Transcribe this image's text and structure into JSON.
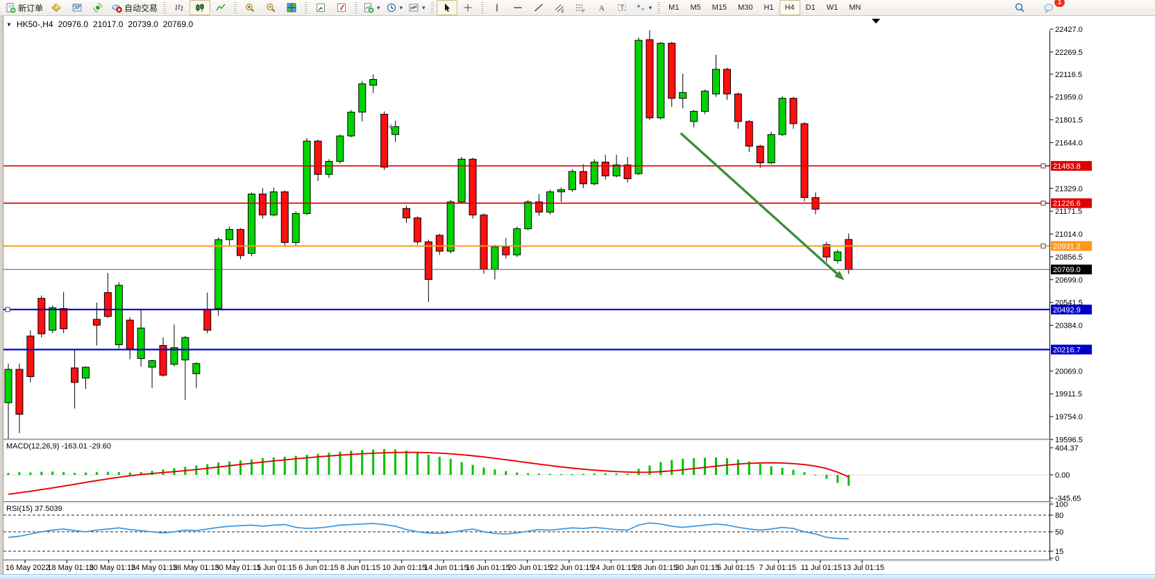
{
  "toolbar": {
    "new_order_label": "新订单",
    "autotrade_label": "自动交易",
    "groups": [
      {
        "items": [
          {
            "name": "new-order-button",
            "icon": "new-order-icon",
            "label": "新订单"
          },
          {
            "name": "market-watch-button",
            "icon": "market-watch-icon"
          },
          {
            "name": "data-window-button",
            "icon": "data-window-icon"
          },
          {
            "name": "navigator-button",
            "icon": "navigator-icon"
          },
          {
            "name": "autotrade-button",
            "icon": "autotrade-icon",
            "label": "自动交易"
          }
        ]
      },
      {
        "items": [
          {
            "name": "bar-chart-button",
            "icon": "bar-chart-icon"
          },
          {
            "name": "candle-chart-button",
            "icon": "candle-chart-icon",
            "active": true
          },
          {
            "name": "line-chart-button",
            "icon": "line-chart-icon"
          }
        ]
      },
      {
        "items": [
          {
            "name": "zoom-in-button",
            "icon": "zoom-in-icon"
          },
          {
            "name": "zoom-out-button",
            "icon": "zoom-out-icon"
          },
          {
            "name": "tile-windows-button",
            "icon": "tile-windows-icon"
          }
        ]
      },
      {
        "items": [
          {
            "name": "auto-arrange-button",
            "icon": "arrange-icon"
          },
          {
            "name": "chart-shift-button",
            "icon": "track-icon"
          }
        ]
      },
      {
        "items": [
          {
            "name": "indicators-button",
            "icon": "indicators-icon",
            "caret": true
          },
          {
            "name": "periods-button",
            "icon": "clock-icon",
            "caret": true
          },
          {
            "name": "templates-button",
            "icon": "template-icon",
            "caret": true
          }
        ]
      },
      {
        "items": [
          {
            "name": "cursor-button",
            "icon": "cursor-icon",
            "active": true
          },
          {
            "name": "crosshair-button",
            "icon": "crosshair-icon"
          }
        ]
      },
      {
        "items": [
          {
            "name": "vline-button",
            "icon": "vline-icon"
          },
          {
            "name": "hline-button",
            "icon": "hline-icon"
          },
          {
            "name": "trendline-button",
            "icon": "trendline-icon"
          },
          {
            "name": "channel-button",
            "icon": "channel-icon"
          },
          {
            "name": "fibonacci-button",
            "icon": "fibo-icon"
          },
          {
            "name": "text-button",
            "icon": "text-icon"
          },
          {
            "name": "label-button",
            "icon": "label-icon"
          },
          {
            "name": "shapes-button",
            "icon": "shapes-icon",
            "caret": true
          }
        ]
      }
    ],
    "timeframes": [
      "M1",
      "M5",
      "M15",
      "M30",
      "H1",
      "H4",
      "D1",
      "W1",
      "MN"
    ],
    "active_timeframe": "H4",
    "chat_badge": "1"
  },
  "chart": {
    "symbol_period": "HK50-,H4",
    "open": "20976.0",
    "high": "21017.0",
    "low": "20739.0",
    "close": "20769.0"
  },
  "indicators": {
    "macd_label": "MACD(12,26,9) -163.01 -29.60",
    "rsi_label": "RSI(15) 37.5039"
  },
  "chart_data": {
    "type": "candlestick",
    "symbol": "HK50-",
    "period": "H4",
    "ylim": [
      19596.5,
      22427.0
    ],
    "grid": false,
    "colors": {
      "up": "#00d300",
      "down": "#ff0f0f",
      "wick": "#000000",
      "macd_hist": "#00c000",
      "macd_signal": "#e80000",
      "rsi_line": "#3a96dd",
      "level_red": "#e00000",
      "level_orange": "#ff9815",
      "level_blue": "#0000cc",
      "current_badge": "#000000",
      "arrow_green": "#3d8c3d"
    },
    "price_ticks": [
      "22427.0",
      "22269.5",
      "22116.5",
      "21959.0",
      "21801.5",
      "21644.0",
      "21329.0",
      "21171.5",
      "21014.0",
      "20856.5",
      "20699.0",
      "20541.5",
      "20384.0",
      "20069.0",
      "19911.5",
      "19754.0",
      "19596.5"
    ],
    "levels": [
      {
        "price": "21483.8",
        "color": "#e00000",
        "width": 1.7,
        "handle": "right"
      },
      {
        "price": "21226.6",
        "color": "#e00000",
        "width": 1.7,
        "handle": "right"
      },
      {
        "price": "20931.2",
        "color": "#ff9815",
        "width": 2,
        "handle": "right"
      },
      {
        "price": "20769.0",
        "color": "#000000",
        "line": "#555555",
        "width": 1,
        "type": "current-price"
      },
      {
        "price": "20492.9",
        "color": "#0000cc",
        "width": 2.2,
        "handle": "left"
      },
      {
        "price": "20216.7",
        "color": "#0000cc",
        "width": 2.2
      }
    ],
    "time_labels": [
      "16 May 2022",
      "18 May 01:15",
      "20 May 01:15",
      "24 May 01:15",
      "26 May 01:15",
      "30 May 01:15",
      "1 Jun 01:15",
      "6 Jun 01:15",
      "8 Jun 01:15",
      "10 Jun 01:15",
      "14 Jun 01:15",
      "16 Jun 01:15",
      "20 Jun 01:15",
      "22 Jun 01:15",
      "24 Jun 01:15",
      "28 Jun 01:15",
      "30 Jun 01:15",
      "5 Jul 01:15",
      "7 Jul 01:15",
      "11 Jul 01:15",
      "13 Jul 01:15"
    ],
    "candles": [
      [
        19850,
        20120,
        19600,
        20080
      ],
      [
        20080,
        20120,
        19640,
        19770
      ],
      [
        20310,
        20350,
        19990,
        20030
      ],
      [
        20570,
        20590,
        20300,
        20325
      ],
      [
        20350,
        20520,
        20330,
        20505
      ],
      [
        20500,
        20615,
        20330,
        20360
      ],
      [
        20090,
        20220,
        19810,
        19990
      ],
      [
        20020,
        20100,
        19945,
        20095
      ],
      [
        20425,
        20540,
        20245,
        20385
      ],
      [
        20610,
        20745,
        20435,
        20445
      ],
      [
        20250,
        20680,
        20225,
        20660
      ],
      [
        20420,
        20440,
        20150,
        20220
      ],
      [
        20155,
        20490,
        20100,
        20365
      ],
      [
        20095,
        20145,
        19950,
        20140
      ],
      [
        20245,
        20300,
        20030,
        20040
      ],
      [
        20115,
        20390,
        20100,
        20230
      ],
      [
        20145,
        20310,
        19870,
        20300
      ],
      [
        20050,
        20130,
        19950,
        20120
      ],
      [
        20495,
        20610,
        20330,
        20350
      ],
      [
        20500,
        20990,
        20450,
        20975
      ],
      [
        20975,
        21065,
        20930,
        21045
      ],
      [
        21045,
        21055,
        20840,
        20865
      ],
      [
        20880,
        21300,
        20860,
        21290
      ],
      [
        21290,
        21330,
        21120,
        21145
      ],
      [
        21145,
        21335,
        21135,
        21305
      ],
      [
        21305,
        21315,
        20930,
        20955
      ],
      [
        20955,
        21170,
        20930,
        21155
      ],
      [
        21155,
        21675,
        21145,
        21655
      ],
      [
        21655,
        21665,
        21380,
        21425
      ],
      [
        21425,
        21530,
        21400,
        21515
      ],
      [
        21515,
        21700,
        21500,
        21690
      ],
      [
        21690,
        21870,
        21680,
        21855
      ],
      [
        21855,
        22070,
        21790,
        22050
      ],
      [
        22040,
        22115,
        21985,
        22080
      ],
      [
        21840,
        21860,
        21455,
        21475
      ],
      [
        21700,
        21795,
        21650,
        21755
      ],
      [
        21190,
        21210,
        21090,
        21125
      ],
      [
        21125,
        21135,
        20940,
        20960
      ],
      [
        20960,
        20975,
        20545,
        20700
      ],
      [
        21005,
        21015,
        20870,
        20895
      ],
      [
        20895,
        21250,
        20880,
        21235
      ],
      [
        21235,
        21545,
        21225,
        21530
      ],
      [
        21530,
        21540,
        21120,
        21145
      ],
      [
        21145,
        21155,
        20740,
        20770
      ],
      [
        20770,
        20940,
        20700,
        20925
      ],
      [
        20925,
        20985,
        20845,
        20870
      ],
      [
        20870,
        21065,
        20855,
        21050
      ],
      [
        21050,
        21250,
        21040,
        21235
      ],
      [
        21235,
        21290,
        21140,
        21165
      ],
      [
        21165,
        21320,
        21150,
        21305
      ],
      [
        21305,
        21335,
        21235,
        21320
      ],
      [
        21320,
        21460,
        21305,
        21445
      ],
      [
        21445,
        21495,
        21330,
        21360
      ],
      [
        21360,
        21530,
        21350,
        21510
      ],
      [
        21510,
        21560,
        21390,
        21415
      ],
      [
        21415,
        21560,
        21405,
        21490
      ],
      [
        21490,
        21545,
        21370,
        21395
      ],
      [
        21430,
        22370,
        21420,
        22350
      ],
      [
        22355,
        22420,
        21800,
        21815
      ],
      [
        21815,
        22340,
        21805,
        22330
      ],
      [
        22330,
        22340,
        21890,
        21950
      ],
      [
        21950,
        22120,
        21880,
        21990
      ],
      [
        21790,
        21870,
        21750,
        21860
      ],
      [
        21860,
        22010,
        21840,
        22000
      ],
      [
        21980,
        22250,
        21960,
        22150
      ],
      [
        22150,
        22160,
        21940,
        21980
      ],
      [
        21980,
        21990,
        21740,
        21790
      ],
      [
        21790,
        21800,
        21580,
        21620
      ],
      [
        21620,
        21630,
        21470,
        21505
      ],
      [
        21505,
        21720,
        21495,
        21700
      ],
      [
        21700,
        21965,
        21690,
        21950
      ],
      [
        21950,
        21960,
        21740,
        21775
      ],
      [
        21775,
        21785,
        21240,
        21265
      ],
      [
        21265,
        21300,
        21150,
        21185
      ],
      [
        20940,
        20960,
        20820,
        20855
      ],
      [
        20830,
        20905,
        20810,
        20890
      ],
      [
        20976,
        21017,
        20739,
        20769
      ]
    ],
    "macd": {
      "label": "MACD(12,26,9) -163.01 -29.60",
      "axis": [
        "404.37",
        "0.00",
        "-345.65"
      ],
      "histogram": [
        30,
        40,
        35,
        45,
        50,
        40,
        30,
        35,
        40,
        45,
        40,
        35,
        40,
        60,
        80,
        100,
        120,
        140,
        160,
        185,
        200,
        215,
        230,
        250,
        260,
        270,
        285,
        300,
        315,
        330,
        345,
        360,
        370,
        380,
        385,
        380,
        360,
        330,
        300,
        270,
        240,
        190,
        150,
        110,
        80,
        55,
        35,
        25,
        20,
        15,
        12,
        12,
        15,
        20,
        22,
        20,
        16,
        90,
        140,
        190,
        220,
        240,
        250,
        255,
        260,
        250,
        230,
        200,
        165,
        130,
        105,
        75,
        40,
        0,
        -60,
        -120,
        -163
      ],
      "signal": [
        -290,
        -268,
        -245,
        -220,
        -195,
        -168,
        -140,
        -112,
        -85,
        -60,
        -36,
        -14,
        5,
        20,
        34,
        48,
        63,
        80,
        98,
        117,
        136,
        155,
        173,
        191,
        208,
        224,
        240,
        255,
        269,
        282,
        294,
        305,
        315,
        323,
        330,
        334,
        336,
        335,
        331,
        324,
        314,
        301,
        285,
        267,
        247,
        226,
        204,
        182,
        160,
        139,
        119,
        101,
        85,
        71,
        59,
        49,
        42,
        38,
        40,
        48,
        60,
        76,
        94,
        112,
        130,
        147,
        161,
        172,
        178,
        180,
        177,
        168,
        153,
        130,
        95,
        40,
        -29.6
      ]
    },
    "rsi": {
      "label": "RSI(15) 37.5039",
      "axis": [
        "100",
        "80",
        "50",
        "15",
        "0"
      ],
      "dashed_levels": [
        80,
        50,
        15
      ],
      "values": [
        40,
        42,
        46,
        50,
        53,
        55,
        52,
        50,
        53,
        55,
        57,
        54,
        52,
        50,
        48,
        50,
        53,
        52,
        55,
        58,
        60,
        61,
        62,
        60,
        62,
        63,
        58,
        56,
        57,
        59,
        62,
        63,
        64,
        65,
        63,
        60,
        54,
        50,
        48,
        47,
        49,
        52,
        55,
        50,
        47,
        46,
        48,
        51,
        54,
        53,
        55,
        57,
        56,
        58,
        56,
        54,
        53,
        62,
        66,
        64,
        60,
        58,
        60,
        62,
        64,
        62,
        58,
        55,
        53,
        55,
        58,
        56,
        50,
        46,
        40,
        38,
        37.5
      ]
    },
    "annotations": {
      "trend_arrow": {
        "from_bar": 60.8,
        "from_price": 21710,
        "to_bar": 75.6,
        "to_price": 20695,
        "color": "#3d8c3d"
      },
      "cross_marker": {
        "bar": 34.6,
        "price": 21754
      },
      "scroll_marker_x": 1262
    }
  }
}
